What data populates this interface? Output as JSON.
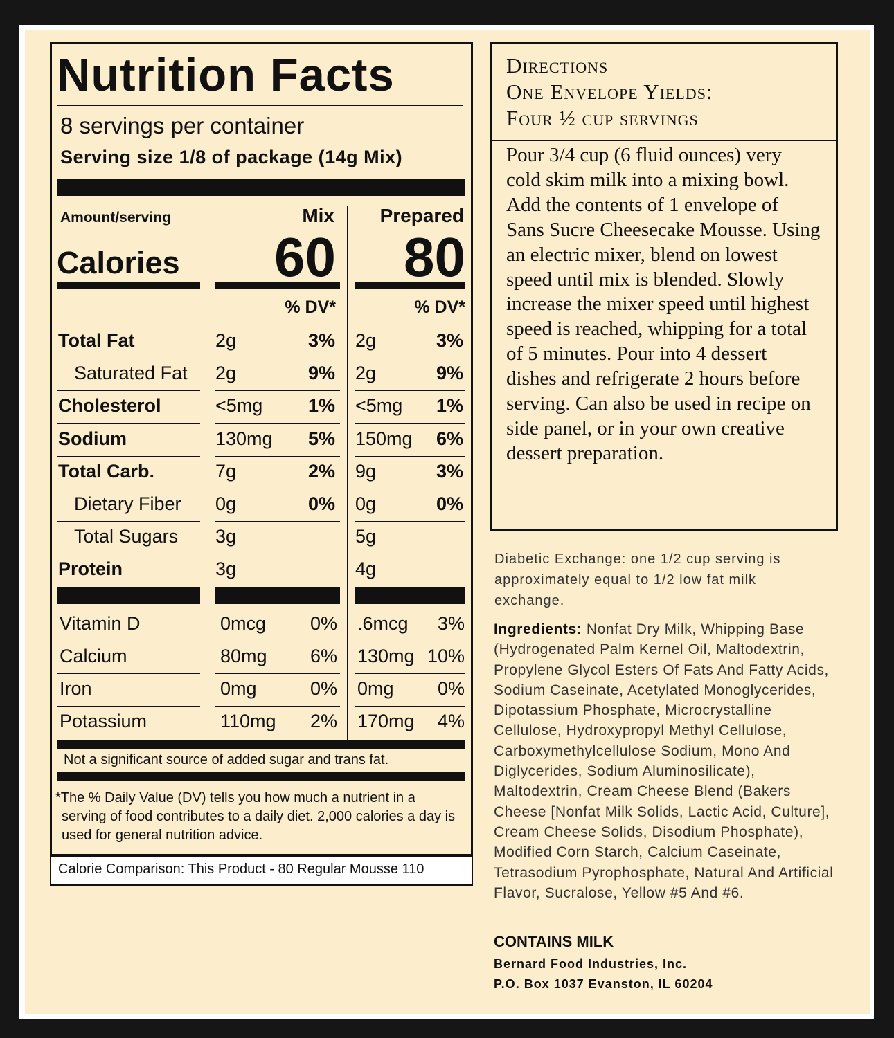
{
  "nutrition": {
    "title": "Nutrition Facts",
    "servings": "8 servings per container",
    "serving_size": "Serving size 1/8 of package (14g Mix)",
    "amount_label": "Amount/serving",
    "calories_label": "Calories",
    "columns": [
      {
        "name": "Mix",
        "calories": "60",
        "dv": "% DV*"
      },
      {
        "name": "Prepared",
        "calories": "80",
        "dv": "% DV*"
      }
    ],
    "nutrients": [
      {
        "name": "Total Fat",
        "bold": true,
        "indent": false,
        "mix": [
          "2g",
          "3%"
        ],
        "prepared": [
          "2g",
          "3%"
        ]
      },
      {
        "name": "Saturated Fat",
        "bold": false,
        "indent": true,
        "mix": [
          "2g",
          "9%"
        ],
        "prepared": [
          "2g",
          "9%"
        ]
      },
      {
        "name": "Cholesterol",
        "bold": true,
        "indent": false,
        "mix": [
          "<5mg",
          "1%"
        ],
        "prepared": [
          "<5mg",
          "1%"
        ]
      },
      {
        "name": "Sodium",
        "bold": true,
        "indent": false,
        "mix": [
          "130mg",
          "5%"
        ],
        "prepared": [
          "150mg",
          "6%"
        ]
      },
      {
        "name": "Total Carb.",
        "bold": true,
        "indent": false,
        "mix": [
          "7g",
          "2%"
        ],
        "prepared": [
          "9g",
          "3%"
        ]
      },
      {
        "name": "Dietary Fiber",
        "bold": false,
        "indent": true,
        "mix": [
          "0g",
          "0%"
        ],
        "prepared": [
          "0g",
          "0%"
        ]
      },
      {
        "name": "Total Sugars",
        "bold": false,
        "indent": true,
        "mix": [
          "3g"
        ],
        "prepared": [
          "5g"
        ]
      },
      {
        "name": "Protein",
        "bold": true,
        "indent": false,
        "mix": [
          "3g"
        ],
        "prepared": [
          "4g"
        ]
      }
    ],
    "vitamins": [
      {
        "name": "Vitamin D",
        "mix": [
          "0mcg",
          "0%"
        ],
        "prepared": [
          ".6mcg",
          "3%"
        ]
      },
      {
        "name": "Calcium",
        "mix": [
          "80mg",
          "6%"
        ],
        "prepared": [
          "130mg",
          "10%"
        ]
      },
      {
        "name": "Iron",
        "mix": [
          "0mg",
          "0%"
        ],
        "prepared": [
          "0mg",
          "0%"
        ]
      },
      {
        "name": "Potassium",
        "mix": [
          "110mg",
          "2%"
        ],
        "prepared": [
          "170mg",
          "4%"
        ]
      }
    ],
    "note": "Not a significant source of added sugar and trans fat.",
    "footnote": "*The % Daily Value (DV) tells you how much a nutrient in a serving of food contributes to a daily diet. 2,000 calories a day is used for general nutrition advice.",
    "comparison": "Calorie Comparison: This Product - 80 Regular Mousse 110"
  },
  "directions": {
    "heading": [
      "Directions",
      "One Envelope Yields:",
      "Four ½ cup servings"
    ],
    "body": "Pour 3/4 cup (6 fluid ounces) very cold skim milk into a mixing bowl. Add the contents of 1 envelope of Sans Sucre Cheesecake Mousse. Using an electric mixer, blend on lowest speed until mix is blended. Slowly increase the mixer speed until highest speed is reached, whipping for a total of 5 minutes. Pour into 4 dessert dishes and refrigerate 2 hours before serving. Can also be used in recipe on side panel, or in your own creative dessert preparation."
  },
  "diabetic_exchange": "Diabetic Exchange: one 1/2 cup serving is approximately equal to 1/2 low fat milk exchange.",
  "ingredients": {
    "label": "Ingredients:",
    "text": "Nonfat Dry Milk, Whipping Base (Hydrogenated Palm Kernel Oil, Maltodextrin, Propylene Glycol Esters Of Fats And Fatty Acids, Sodium Caseinate, Acetylated Monoglycerides, Dipotassium Phosphate, Microcrystalline Cellulose, Hydroxypropyl Methyl Cellulose, Carboxymethylcellulose Sodium, Mono And Diglycerides, Sodium Aluminosilicate), Maltodextrin, Cream Cheese Blend (Bakers Cheese [Nonfat Milk Solids, Lactic Acid, Culture], Cream Cheese Solids, Disodium Phosphate), Modified Corn Starch, Calcium Caseinate, Tetrasodium Pyrophosphate, Natural And Artificial Flavor, Sucralose, Yellow #5 And #6."
  },
  "allergen": "CONTAINS MILK",
  "company": "Bernard Food Industries, Inc.",
  "address": "P.O. Box 1037 Evanston, IL 60204"
}
